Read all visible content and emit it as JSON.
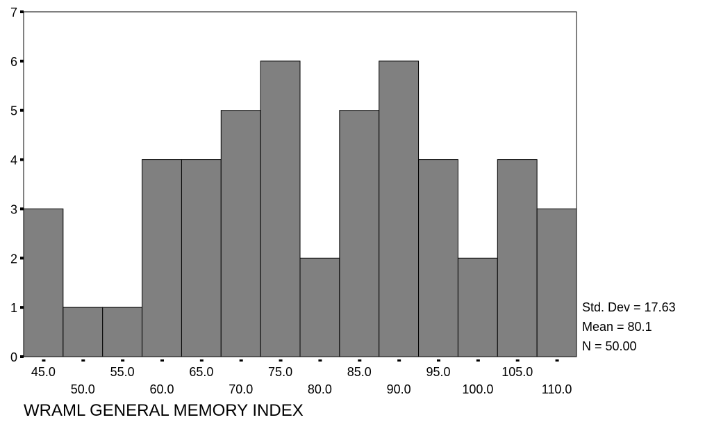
{
  "chart_data": {
    "type": "bar",
    "chart_subtype": "histogram",
    "xlabel": "WRAML GENERAL MEMORY INDEX",
    "ylabel": "",
    "ylim": [
      0,
      7
    ],
    "y_ticks": [
      "0",
      "1",
      "2",
      "3",
      "4",
      "5",
      "6",
      "7"
    ],
    "categories": [
      "45.0",
      "50.0",
      "55.0",
      "60.0",
      "65.0",
      "70.0",
      "75.0",
      "80.0",
      "85.0",
      "90.0",
      "95.0",
      "100.0",
      "105.0",
      "110.0"
    ],
    "values": [
      3,
      1,
      1,
      4,
      4,
      5,
      6,
      2,
      5,
      6,
      4,
      2,
      4,
      3
    ],
    "bin_width": 5,
    "bar_color": "#808080",
    "grid": false,
    "stats": [
      "Std. Dev = 17.63",
      "Mean = 80.1",
      "N = 50.00"
    ]
  }
}
